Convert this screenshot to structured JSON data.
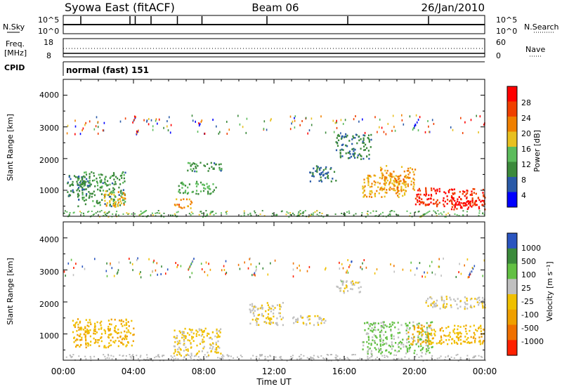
{
  "header": {
    "station": "Syowa East (fitACF)",
    "beam": "Beam 06",
    "date": "26/Jan/2010"
  },
  "noise_panel": {
    "left_label": "N.Sky",
    "right_label": "N.Search",
    "left_ticks": [
      "10^5",
      "10^0"
    ],
    "right_ticks": [
      "10^5",
      "10^0"
    ]
  },
  "freq_panel": {
    "left_label_1": "Freq.",
    "left_label_2": "[MHz]",
    "left_ticks": [
      "18",
      "8"
    ],
    "right_label": "Nave",
    "right_ticks": [
      "60",
      "0"
    ]
  },
  "cpid_panel": {
    "label": "CPID",
    "value": "normal (fast) 151"
  },
  "power_panel": {
    "ylabel": "Slant Range [km]",
    "yticks": [
      "4000",
      "3000",
      "2000",
      "1000"
    ],
    "colorbar_label": "Power [dB]",
    "colorbar_ticks": [
      "28",
      "24",
      "20",
      "16",
      "12",
      "8",
      "4"
    ]
  },
  "velocity_panel": {
    "ylabel": "Slant Range [km]",
    "yticks": [
      "4000",
      "3000",
      "2000",
      "1000"
    ],
    "colorbar_label": "Velocity [m s⁻¹]",
    "colorbar_ticks": [
      "1000",
      "500",
      "100",
      "25",
      "-25",
      "-100",
      "-500",
      "-1000"
    ]
  },
  "time_axis": {
    "label": "Time UT",
    "ticks": [
      "00:00",
      "04:00",
      "08:00",
      "12:00",
      "16:00",
      "20:00",
      "00:00"
    ]
  },
  "colors": {
    "power_scale": [
      "#0000ff",
      "#2a5aa8",
      "#3c8a3c",
      "#5cbc5c",
      "#e8c020",
      "#f08000",
      "#f04000",
      "#ff0000"
    ],
    "velocity_scale": [
      "#2a55c0",
      "#3b8a3b",
      "#62c043",
      "#c0c0c0",
      "#f0c000",
      "#f0a000",
      "#f07000",
      "#ff2000"
    ]
  },
  "chart_data": [
    {
      "type": "heatmap",
      "title": "",
      "xlabel": "",
      "ylabel": "Slant Range [km]",
      "xlim": [
        0,
        24
      ],
      "ylim": [
        180,
        4500
      ],
      "quantity": "Power",
      "units": "dB",
      "scale_range": [
        0,
        30
      ],
      "regions": [
        {
          "t0": 0.2,
          "t1": 1.5,
          "r0": 800,
          "r1": 1500,
          "value": 8
        },
        {
          "t0": 0.8,
          "t1": 3.5,
          "r0": 500,
          "r1": 1600,
          "value": 10
        },
        {
          "t0": 2.3,
          "t1": 3.5,
          "r0": 500,
          "r1": 1000,
          "value": 18
        },
        {
          "t0": 6.3,
          "t1": 7.3,
          "r0": 450,
          "r1": 750,
          "value": 20
        },
        {
          "t0": 6.5,
          "t1": 8.7,
          "r0": 900,
          "r1": 1300,
          "value": 12
        },
        {
          "t0": 7.0,
          "t1": 9.0,
          "r0": 1600,
          "r1": 1900,
          "value": 10
        },
        {
          "t0": 14.0,
          "t1": 15.5,
          "r0": 1300,
          "r1": 1800,
          "value": 8
        },
        {
          "t0": 15.5,
          "t1": 17.5,
          "r0": 2000,
          "r1": 2800,
          "value": 8
        },
        {
          "t0": 17.0,
          "t1": 19.5,
          "r0": 800,
          "r1": 1500,
          "value": 18
        },
        {
          "t0": 18.0,
          "t1": 20.0,
          "r0": 1000,
          "r1": 1800,
          "value": 20
        },
        {
          "t0": 20.0,
          "t1": 24.0,
          "r0": 500,
          "r1": 1100,
          "value": 26
        },
        {
          "t0": 22.0,
          "t1": 24.0,
          "r0": 400,
          "r1": 800,
          "value": 28
        }
      ]
    },
    {
      "type": "heatmap",
      "title": "",
      "xlabel": "Time UT",
      "ylabel": "Slant Range [km]",
      "xlim": [
        0,
        24
      ],
      "ylim": [
        180,
        4500
      ],
      "quantity": "Velocity",
      "units": "m s⁻¹",
      "scale_range": [
        -1000,
        1000
      ],
      "regions": [
        {
          "t0": 0.5,
          "t1": 4.0,
          "r0": 600,
          "r1": 1500,
          "value": -200
        },
        {
          "t0": 6.2,
          "t1": 9.0,
          "r0": 350,
          "r1": 1200,
          "value": -50
        },
        {
          "t0": 10.5,
          "t1": 12.5,
          "r0": 1300,
          "r1": 2000,
          "value": 0
        },
        {
          "t0": 13.0,
          "t1": 15.0,
          "r0": 1300,
          "r1": 1600,
          "value": 0
        },
        {
          "t0": 15.5,
          "t1": 17.0,
          "r0": 2300,
          "r1": 2700,
          "value": 80
        },
        {
          "t0": 17.0,
          "t1": 21.0,
          "r0": 400,
          "r1": 1400,
          "value": 300
        },
        {
          "t0": 19.5,
          "t1": 24.0,
          "r0": 700,
          "r1": 1300,
          "value": -200
        },
        {
          "t0": 20.5,
          "t1": 24.0,
          "r0": 1800,
          "r1": 2200,
          "value": 50
        }
      ]
    }
  ]
}
